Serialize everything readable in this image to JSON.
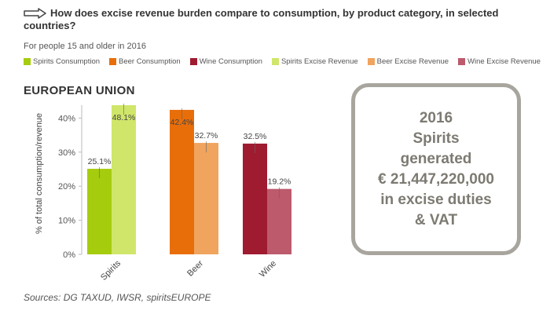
{
  "header": {
    "title_line1": "How does excise revenue burden compare to consumption, by product category, in selected",
    "title_line2": "countries?",
    "subtitle": "For people 15 and older in 2016",
    "region": "EUROPEAN UNION",
    "arrow_icon": "outline-arrow-icon"
  },
  "legend": [
    {
      "label": "Spirits Consumption",
      "color": "#a6cc0e"
    },
    {
      "label": "Beer Consumption",
      "color": "#e86e0a"
    },
    {
      "label": "Wine Consumption",
      "color": "#9f1b30"
    },
    {
      "label": "Spirits Excise Revenue",
      "color": "#cfe66a"
    },
    {
      "label": "Beer Excise Revenue",
      "color": "#f0a45e"
    },
    {
      "label": "Wine Excise Revenue",
      "color": "#bd5a6c"
    }
  ],
  "chart_data": {
    "type": "bar",
    "categories": [
      "Spirits",
      "Beer",
      "Wine"
    ],
    "series": [
      {
        "name": "Consumption",
        "values": [
          25.1,
          42.4,
          32.5
        ]
      },
      {
        "name": "Excise Revenue",
        "values": [
          48.1,
          32.7,
          19.2
        ]
      }
    ],
    "data_labels": [
      [
        "25.1%",
        "48.1%"
      ],
      [
        "42.4%",
        "32.7%"
      ],
      [
        "32.5%",
        "19.2%"
      ]
    ],
    "colors": [
      [
        "#a6cc0e",
        "#cfe66a"
      ],
      [
        "#e86e0a",
        "#f0a45e"
      ],
      [
        "#9f1b30",
        "#bd5a6c"
      ]
    ],
    "ylabel": "% of total consumption/revenue",
    "yticks": [
      "0%",
      "10%",
      "20%",
      "30%",
      "40%"
    ],
    "ylim": [
      0,
      47
    ],
    "grid": false
  },
  "info": {
    "lines": [
      "2016",
      "Spirits",
      "generated",
      "€ 21,447,220,000",
      "in excise duties",
      "& VAT"
    ]
  },
  "footer": {
    "sources": "Sources: DG TAXUD, IWSR, spiritsEUROPE"
  }
}
